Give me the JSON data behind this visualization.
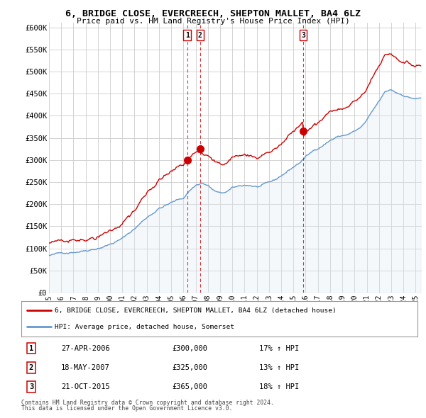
{
  "title": "6, BRIDGE CLOSE, EVERCREECH, SHEPTON MALLET, BA4 6LZ",
  "subtitle": "Price paid vs. HM Land Registry's House Price Index (HPI)",
  "ylabel_ticks": [
    "£0",
    "£50K",
    "£100K",
    "£150K",
    "£200K",
    "£250K",
    "£300K",
    "£350K",
    "£400K",
    "£450K",
    "£500K",
    "£550K",
    "£600K"
  ],
  "ytick_vals": [
    0,
    50000,
    100000,
    150000,
    200000,
    250000,
    300000,
    350000,
    400000,
    450000,
    500000,
    550000,
    600000
  ],
  "ylim": [
    0,
    610000
  ],
  "xlim_start": 1995.0,
  "xlim_end": 2025.5,
  "transactions": [
    {
      "label": "1",
      "date": "27-APR-2006",
      "price": 300000,
      "year": 2006.32,
      "pct": "17%",
      "dir": "↑"
    },
    {
      "label": "2",
      "date": "18-MAY-2007",
      "price": 325000,
      "year": 2007.37,
      "pct": "13%",
      "dir": "↑"
    },
    {
      "label": "3",
      "date": "21-OCT-2015",
      "price": 365000,
      "year": 2015.8,
      "pct": "18%",
      "dir": "↑"
    }
  ],
  "legend_line1": "6, BRIDGE CLOSE, EVERCREECH, SHEPTON MALLET, BA4 6LZ (detached house)",
  "legend_line2": "HPI: Average price, detached house, Somerset",
  "footnote1": "Contains HM Land Registry data © Crown copyright and database right 2024.",
  "footnote2": "This data is licensed under the Open Government Licence v3.0.",
  "red_color": "#cc0000",
  "blue_color": "#6699cc",
  "blue_fill": "#dde8f5",
  "grid_color": "#cccccc",
  "background_color": "#ffffff",
  "xtick_years": [
    1995,
    1996,
    1997,
    1998,
    1999,
    2000,
    2001,
    2002,
    2003,
    2004,
    2005,
    2006,
    2007,
    2008,
    2009,
    2010,
    2011,
    2012,
    2013,
    2014,
    2015,
    2016,
    2017,
    2018,
    2019,
    2020,
    2021,
    2022,
    2023,
    2024,
    2025
  ]
}
